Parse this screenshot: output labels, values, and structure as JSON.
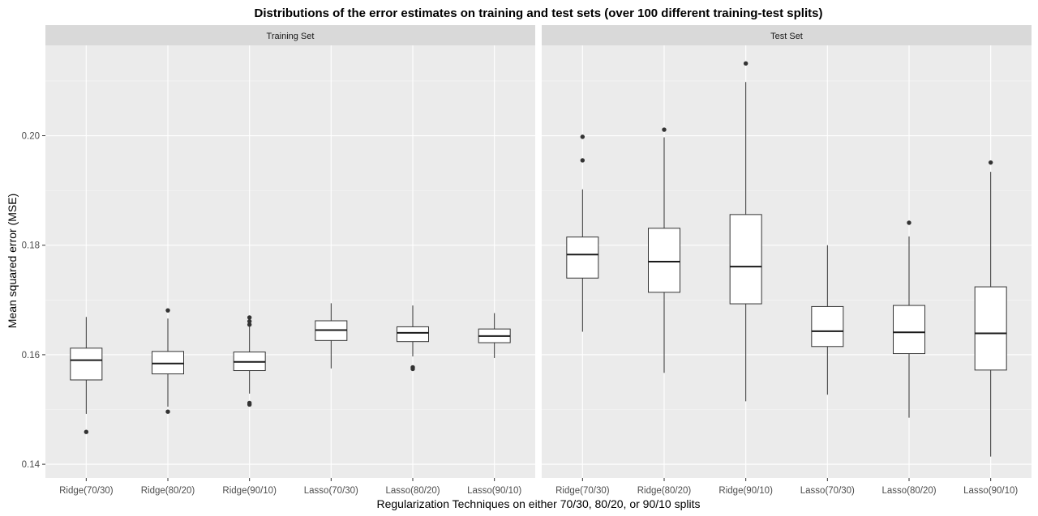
{
  "chart_data": {
    "type": "boxplot",
    "title": "Distributions of the error estimates on training and test sets (over 100 different training-test splits)",
    "xlabel": "Regularization Techniques on either 70/30, 80/20, or 90/10 splits",
    "ylabel": "Mean squared error (MSE)",
    "ylim": [
      0.1375,
      0.2165
    ],
    "yticks": [
      0.14,
      0.16,
      0.18,
      0.2
    ],
    "ytick_labels": [
      "0.14",
      "0.16",
      "0.18",
      "0.20"
    ],
    "grid": true,
    "categories": [
      "Ridge(70/30)",
      "Ridge(80/20)",
      "Ridge(90/10)",
      "Lasso(70/30)",
      "Lasso(80/20)",
      "Lasso(90/10)"
    ],
    "panels": [
      {
        "name": "Training Set",
        "boxes": [
          {
            "whisker_low": 0.1492,
            "q1": 0.1554,
            "median": 0.159,
            "q3": 0.1612,
            "whisker_high": 0.1669,
            "outliers": [
              0.1459
            ]
          },
          {
            "whisker_low": 0.1505,
            "q1": 0.1565,
            "median": 0.1584,
            "q3": 0.1606,
            "whisker_high": 0.1666,
            "outliers": [
              0.1496,
              0.1681
            ]
          },
          {
            "whisker_low": 0.1529,
            "q1": 0.1571,
            "median": 0.1587,
            "q3": 0.1605,
            "whisker_high": 0.1662,
            "outliers": [
              0.1509,
              0.1512,
              0.1655,
              0.1661,
              0.1668
            ]
          },
          {
            "whisker_low": 0.1575,
            "q1": 0.1626,
            "median": 0.1645,
            "q3": 0.1662,
            "whisker_high": 0.1694,
            "outliers": []
          },
          {
            "whisker_low": 0.1597,
            "q1": 0.1624,
            "median": 0.164,
            "q3": 0.1651,
            "whisker_high": 0.169,
            "outliers": [
              0.1574,
              0.1577
            ]
          },
          {
            "whisker_low": 0.1594,
            "q1": 0.1622,
            "median": 0.1634,
            "q3": 0.1647,
            "whisker_high": 0.1676,
            "outliers": []
          }
        ]
      },
      {
        "name": "Test Set",
        "boxes": [
          {
            "whisker_low": 0.1642,
            "q1": 0.174,
            "median": 0.1783,
            "q3": 0.1815,
            "whisker_high": 0.1902,
            "outliers": [
              0.1955,
              0.1998
            ]
          },
          {
            "whisker_low": 0.1567,
            "q1": 0.1714,
            "median": 0.177,
            "q3": 0.1831,
            "whisker_high": 0.1997,
            "outliers": [
              0.2011
            ]
          },
          {
            "whisker_low": 0.1515,
            "q1": 0.1693,
            "median": 0.1761,
            "q3": 0.1856,
            "whisker_high": 0.2098,
            "outliers": [
              0.2132
            ]
          },
          {
            "whisker_low": 0.1527,
            "q1": 0.1615,
            "median": 0.1643,
            "q3": 0.1688,
            "whisker_high": 0.18,
            "outliers": []
          },
          {
            "whisker_low": 0.1485,
            "q1": 0.1602,
            "median": 0.1641,
            "q3": 0.169,
            "whisker_high": 0.1816,
            "outliers": [
              0.1841
            ]
          },
          {
            "whisker_low": 0.1414,
            "q1": 0.1572,
            "median": 0.1639,
            "q3": 0.1724,
            "whisker_high": 0.1934,
            "outliers": [
              0.1951
            ]
          }
        ]
      }
    ]
  }
}
